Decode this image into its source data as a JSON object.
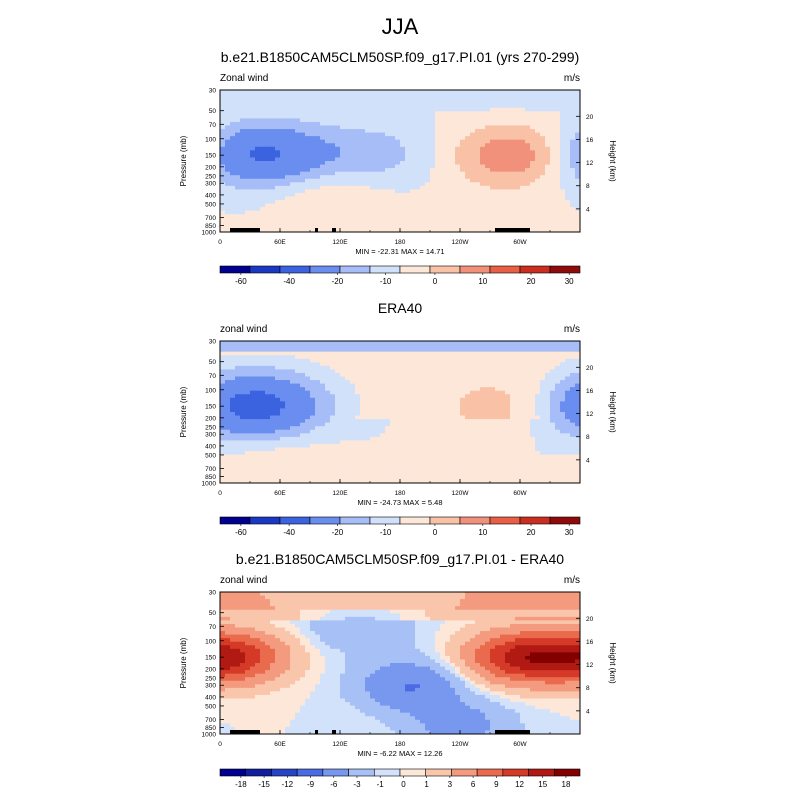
{
  "figure": {
    "title": "JJA"
  },
  "chart_data": [
    {
      "type": "heatmap",
      "title": "b.e21.B1850CAM5CLM50SP.f09_g17.PI.01 (yrs 270-299)",
      "left_label": "Zonal wind",
      "units": "m/s",
      "ylabel": "Pressure (mb)",
      "right_ylabel": "Height (km)",
      "y_ticks": [
        "30",
        "50",
        "70",
        "100",
        "150",
        "200",
        "250",
        "300",
        "400",
        "500",
        "700",
        "850",
        "1000"
      ],
      "right_ticks": [
        "20",
        "16",
        "12",
        "8",
        "4"
      ],
      "x_ticks": [
        "0",
        "60E",
        "120E",
        "180",
        "120W",
        "60W"
      ],
      "stats": "MIN = -22.31   MAX =  14.71",
      "colorbar_labels": [
        "-60",
        "-40",
        "-20",
        "-10",
        "0",
        "10",
        "20",
        "30"
      ],
      "features": [
        {
          "lon": 40,
          "p": 150,
          "value": -22
        },
        {
          "lon": 150,
          "p": 150,
          "value": -8
        },
        {
          "lon": 295,
          "p": 150,
          "value": 14.7
        },
        {
          "lon": 110,
          "p": 400,
          "value": 5
        },
        {
          "lon": 270,
          "p": 700,
          "value": 2
        }
      ]
    },
    {
      "type": "heatmap",
      "title": "ERA40",
      "left_label": "zonal wind",
      "units": "m/s",
      "ylabel": "Pressure (mb)",
      "right_ylabel": "Height (km)",
      "y_ticks": [
        "30",
        "50",
        "70",
        "100",
        "150",
        "200",
        "250",
        "300",
        "400",
        "500",
        "700",
        "850",
        "1000"
      ],
      "right_ticks": [
        "20",
        "16",
        "12",
        "8",
        "4"
      ],
      "x_ticks": [
        "0",
        "60E",
        "120E",
        "180",
        "120W",
        "60W"
      ],
      "stats": "MIN = -24.73   MAX =   5.48",
      "colorbar_labels": [
        "-60",
        "-40",
        "-20",
        "-10",
        "0",
        "10",
        "20",
        "30"
      ],
      "features": [
        {
          "lon": 35,
          "p": 150,
          "value": -24.7
        },
        {
          "lon": 280,
          "p": 150,
          "value": 5.5
        },
        {
          "lon": 60,
          "p": 600,
          "value": 4
        }
      ]
    },
    {
      "type": "heatmap",
      "title": "b.e21.B1850CAM5CLM50SP.f09_g17.PI.01 - ERA40",
      "left_label": "zonal wind",
      "units": "m/s",
      "ylabel": "Pressure (mb)",
      "right_ylabel": "Height (km)",
      "y_ticks": [
        "30",
        "50",
        "70",
        "100",
        "150",
        "200",
        "250",
        "300",
        "400",
        "500",
        "700",
        "850",
        "1000"
      ],
      "right_ticks": [
        "20",
        "16",
        "12",
        "8",
        "4"
      ],
      "x_ticks": [
        "0",
        "60E",
        "120E",
        "180",
        "120W",
        "60W"
      ],
      "stats": "MIN =  -6.22   MAX =  12.26",
      "colorbar_labels": [
        "-18",
        "-15",
        "-12",
        "-9",
        "-6",
        "-3",
        "-1",
        "0",
        "1",
        "3",
        "6",
        "9",
        "12",
        "15",
        "18"
      ],
      "features": [
        {
          "lon": 10,
          "p": 150,
          "value": 12
        },
        {
          "lon": 300,
          "p": 150,
          "value": 12.3
        },
        {
          "lon": 190,
          "p": 300,
          "value": -6
        },
        {
          "lon": 140,
          "p": 70,
          "value": -3
        },
        {
          "lon": 240,
          "p": 800,
          "value": -4
        }
      ]
    }
  ],
  "colors": {
    "palette_main": [
      "#00008f",
      "#1b38c3",
      "#3b63e0",
      "#6a8df0",
      "#a6bdf7",
      "#d2e1fa",
      "#fde7d9",
      "#f9c2a6",
      "#f2917b",
      "#e85f45",
      "#c92e20",
      "#8e0b0b"
    ],
    "palette_diff": [
      "#00008f",
      "#12209f",
      "#2844c5",
      "#4a6be4",
      "#7898ef",
      "#a7c0f6",
      "#d3e2fb",
      "#fde7d9",
      "#f9c6ac",
      "#f49a7e",
      "#ea6a4d",
      "#d43a27",
      "#b01a13",
      "#820000"
    ]
  }
}
